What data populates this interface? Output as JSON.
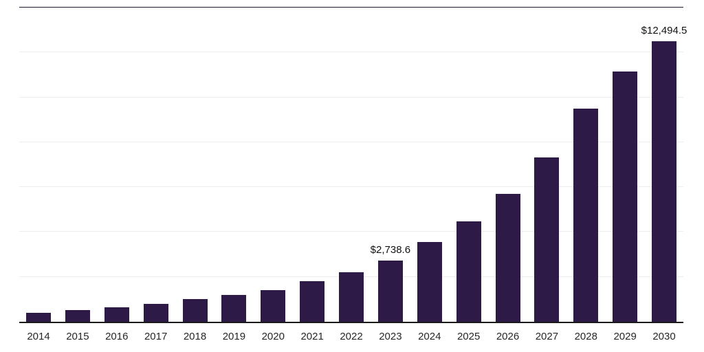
{
  "chart_data": {
    "type": "bar",
    "title": "",
    "xlabel": "",
    "ylabel": "",
    "categories": [
      "2014",
      "2015",
      "2016",
      "2017",
      "2018",
      "2019",
      "2020",
      "2021",
      "2022",
      "2023",
      "2024",
      "2025",
      "2026",
      "2027",
      "2028",
      "2029",
      "2030"
    ],
    "values": [
      395,
      515,
      640,
      790,
      1000,
      1185,
      1400,
      1795,
      2220,
      2738.6,
      3560,
      4470,
      5690,
      7330,
      9490,
      11140,
      12494.5
    ],
    "value_labels": {
      "2023": "$2,738.6",
      "2030": "$12,494.5"
    },
    "ylim": [
      0,
      14000
    ],
    "gridline_step": 2000,
    "grid": true,
    "legend": "none",
    "bar_color": "#2e1a47"
  }
}
